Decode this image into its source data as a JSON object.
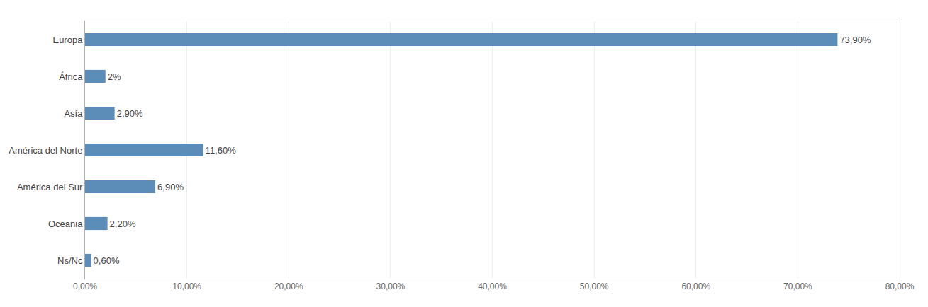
{
  "chart_data": {
    "type": "bar",
    "orientation": "horizontal",
    "categories": [
      "Europa",
      "África",
      "Asía",
      "América del Norte",
      "América del Sur",
      "Oceania",
      "Ns/Nc"
    ],
    "values": [
      73.9,
      2.0,
      2.9,
      11.6,
      6.9,
      2.2,
      0.6
    ],
    "value_labels": [
      "73,90%",
      "2%",
      "2,90%",
      "11,60%",
      "6,90%",
      "2,20%",
      "0,60%"
    ],
    "data_labels": true,
    "color": "#5B8DB8",
    "xlim": [
      0,
      80
    ],
    "xticks": [
      {
        "value": 0,
        "label": "0,00%"
      },
      {
        "value": 10,
        "label": "10,00%"
      },
      {
        "value": 20,
        "label": "20,00%"
      },
      {
        "value": 30,
        "label": "30,00%"
      },
      {
        "value": 40,
        "label": "40,00%"
      },
      {
        "value": 50,
        "label": "50,00%"
      },
      {
        "value": 60,
        "label": "60,00%"
      },
      {
        "value": 70,
        "label": "70,00%"
      },
      {
        "value": 80,
        "label": "80,00%"
      }
    ],
    "grid": true
  }
}
